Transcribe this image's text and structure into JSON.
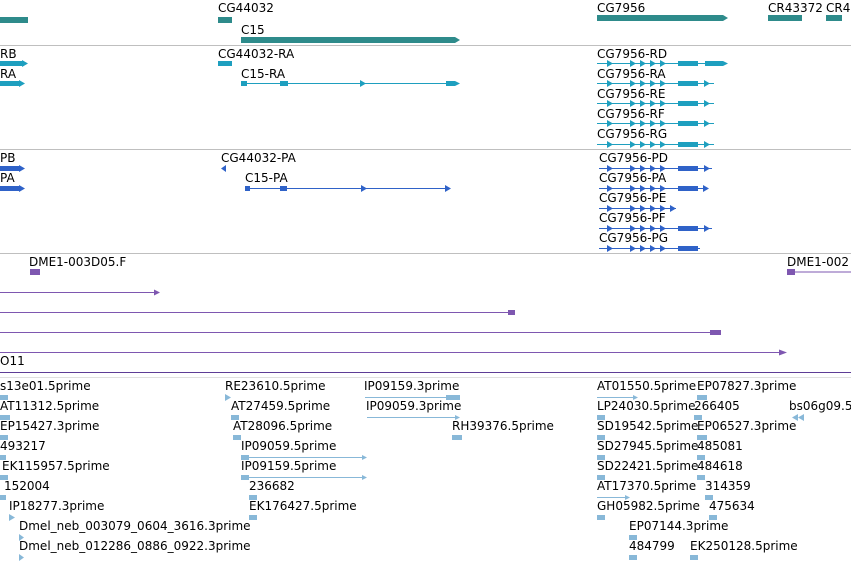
{
  "colors": {
    "gene": "#2e8b8b",
    "transcript": "#1e9fbf",
    "protein": "#2f62c8",
    "clone": "#7e57b0",
    "est": "#88b8d8",
    "divider": "#bfbfbf"
  },
  "tracks": {
    "genes": {
      "labels": [
        "CG44032",
        "C15",
        "CG7956",
        "CR43372",
        "CR4"
      ]
    },
    "transcripts": {
      "labels": [
        "RB",
        "RA",
        "CG44032-RA",
        "C15-RA",
        "CG7956-RD",
        "CG7956-RA",
        "CG7956-RE",
        "CG7956-RF",
        "CG7956-RG"
      ]
    },
    "proteins": {
      "labels": [
        "PB",
        "PA",
        "CG44032-PA",
        "C15-PA",
        "CG7956-PD",
        "CG7956-PA",
        "CG7956-PE",
        "CG7956-PF",
        "CG7956-PG"
      ]
    },
    "clones": {
      "labels": [
        "DME1-003D05.F",
        "DME1-002",
        "O11"
      ]
    },
    "ests": {
      "labels": [
        "s13e01.5prime",
        "AT11312.5prime",
        "EP15427.3prime",
        "493217",
        "EK115957.5prime",
        "152004",
        "IP18277.3prime",
        "Dmel_neb_003079_0604_3616.3prime",
        "Dmel_neb_012286_0886_0922.3prime",
        "RE23610.5prime",
        "AT27459.5prime",
        "AT28096.5prime",
        "IP09059.5prime",
        "IP09159.5prime",
        "236682",
        "EK176427.5prime",
        "IP09159.3prime",
        "IP09059.3prime",
        "RH39376.5prime",
        "AT01550.5prime",
        "EP07827.3prime",
        "LP24030.5prime",
        "266405",
        "bs06g09.5",
        "SD19542.5prime",
        "EP06527.3prime",
        "SD27945.5prime",
        "485081",
        "SD22421.5prime",
        "484618",
        "AT17370.5prime",
        "314359",
        "GH05982.5prime",
        "475634",
        "EP07144.3prime",
        "484799",
        "EK250128.5prime"
      ]
    }
  }
}
